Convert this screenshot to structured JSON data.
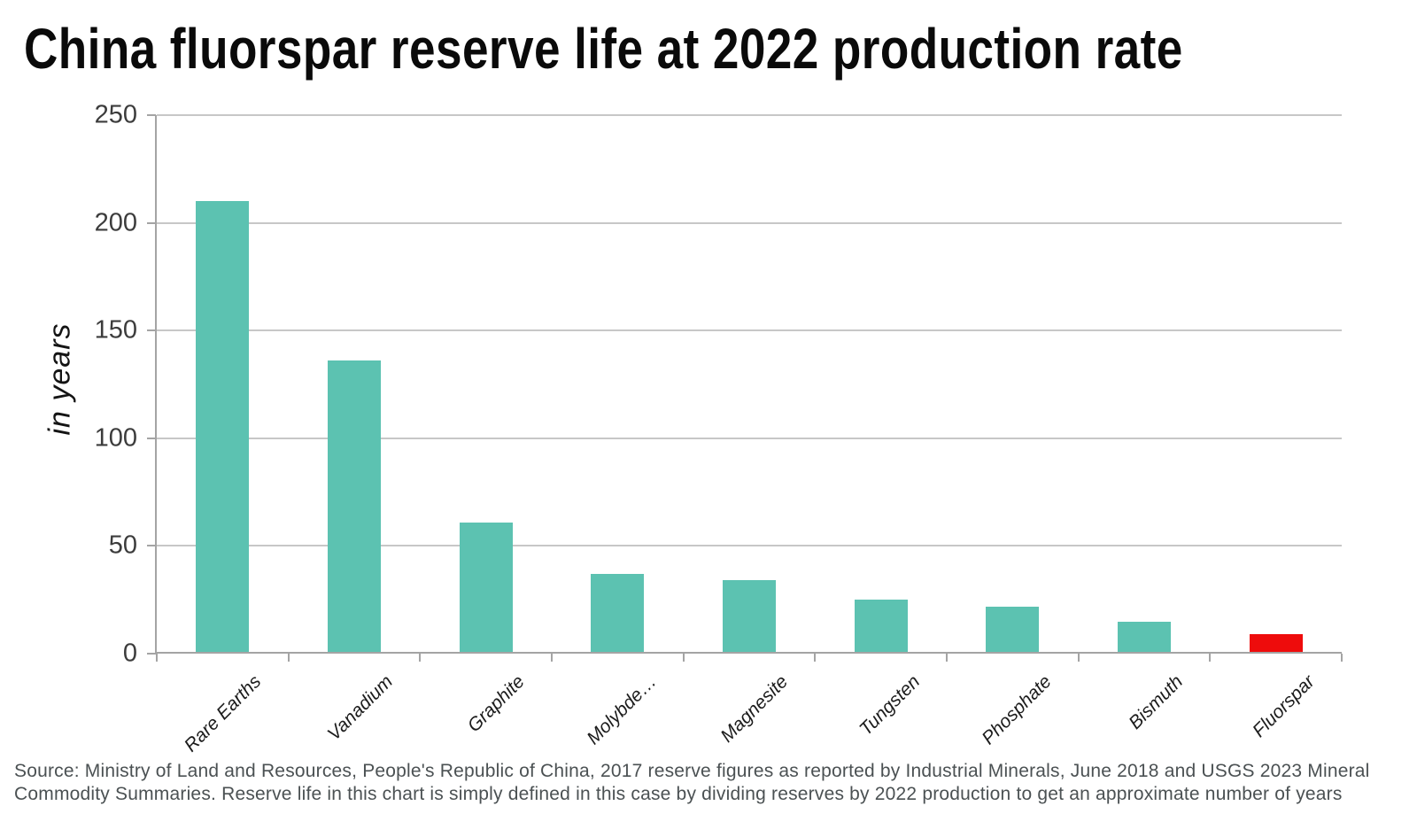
{
  "title": "China fluorspar reserve life at 2022 production rate",
  "source": {
    "line1": "Source: Ministry of Land and Resources, People's Republic of China, 2017 reserve figures as reported by Industrial Minerals, June 2018 and USGS 2023 Mineral",
    "line2": "Commodity Summaries. Reserve life in this chart is simply defined in this case by dividing reserves by 2022 production to get an approximate number of years"
  },
  "chart_data": {
    "type": "bar",
    "title": "China fluorspar reserve life at 2022 production rate",
    "ylabel": "in years",
    "xlabel": "",
    "categories": [
      "Rare Earths",
      "Vanadium",
      "Graphite",
      "Molybde…",
      "Magnesite",
      "Tungsten",
      "Phosphate",
      "Bismuth",
      "Fluorspar"
    ],
    "values": [
      210,
      136,
      61,
      37,
      34,
      25,
      22,
      15,
      9
    ],
    "bar_colors": [
      "#5cc2b1",
      "#5cc2b1",
      "#5cc2b1",
      "#5cc2b1",
      "#5cc2b1",
      "#5cc2b1",
      "#5cc2b1",
      "#5cc2b1",
      "#ee0c0c"
    ],
    "highlight": {
      "category": "Fluorspar",
      "color": "#ee0c0c"
    },
    "ylim": [
      0,
      250
    ],
    "yticks": [
      0,
      50,
      100,
      150,
      200,
      250
    ],
    "grid": true,
    "legend": false,
    "grid_color": "#c7c7c7",
    "axis_color": "#a4a4a4"
  }
}
